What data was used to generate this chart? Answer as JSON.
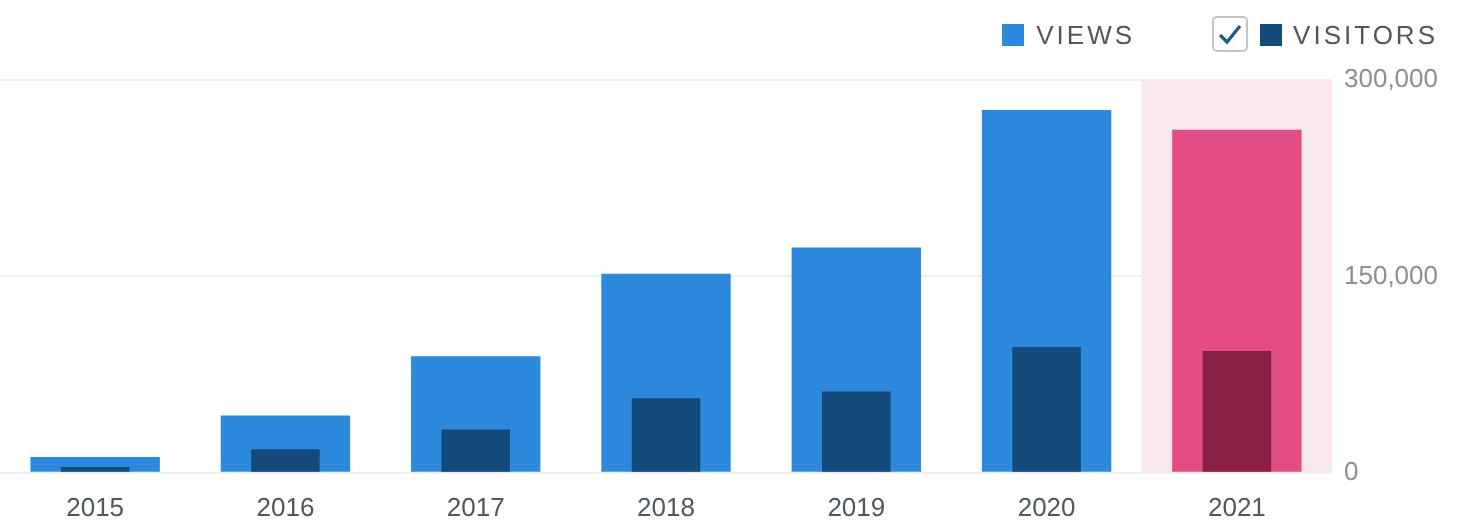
{
  "chart_data": {
    "type": "bar",
    "categories": [
      "2015",
      "2016",
      "2017",
      "2018",
      "2019",
      "2020",
      "2021"
    ],
    "series": [
      {
        "name": "VIEWS",
        "color": "#2d89dc",
        "colors": [
          "#2d89dc",
          "#2d89dc",
          "#2d89dc",
          "#2d89dc",
          "#2d89dc",
          "#2d89dc",
          "#e34c84"
        ],
        "values": [
          12000,
          43700,
          89000,
          152000,
          172000,
          277000,
          262000
        ]
      },
      {
        "name": "VISITORS",
        "color": "#154a7c",
        "colors": [
          "#154a7c",
          "#154a7c",
          "#154a7c",
          "#154a7c",
          "#154a7c",
          "#154a7c",
          "#8a2046"
        ],
        "values": [
          4500,
          18000,
          33000,
          57000,
          62000,
          96000,
          93000
        ]
      }
    ],
    "ylim": [
      0,
      300000
    ],
    "yticks": [
      {
        "value": 0,
        "label": "0"
      },
      {
        "value": 150000,
        "label": "150,000"
      },
      {
        "value": 300000,
        "label": "300,000"
      }
    ],
    "bands": [
      {
        "axis": "x",
        "from": "2021",
        "to": "2021",
        "color": "#f9e7ee"
      }
    ],
    "grid": "y",
    "legend": "top right"
  }
}
